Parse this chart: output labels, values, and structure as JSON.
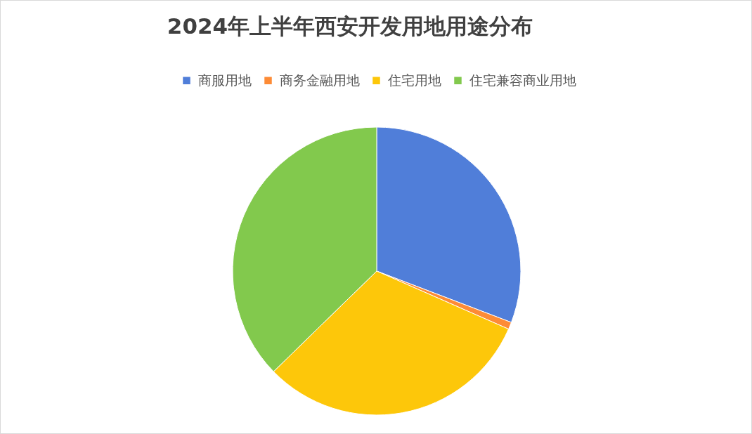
{
  "chart_data": {
    "type": "pie",
    "title": "2024年上半年西安开发用地用途分布",
    "categories": [
      "商服用地",
      "商务金融用地",
      "住宅用地",
      "住宅兼容商业用地"
    ],
    "values": [
      30.8,
      0.8,
      31.1,
      37.3
    ],
    "colors": [
      "#507ed9",
      "#fd8b36",
      "#fdc70a",
      "#82c94d"
    ],
    "legend": "top"
  }
}
